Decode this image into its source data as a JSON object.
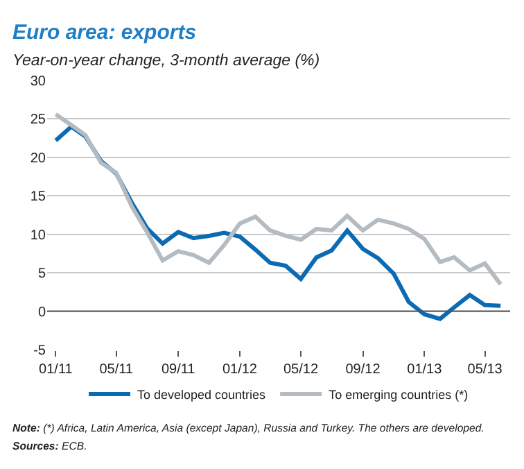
{
  "chart_data": {
    "type": "line",
    "title": "Euro area: exports",
    "subtitle": "Year-on-year change, 3-month average (%)",
    "x": [
      "2011-01",
      "2011-02",
      "2011-03",
      "2011-04",
      "2011-05",
      "2011-06",
      "2011-07",
      "2011-08",
      "2011-09",
      "2011-10",
      "2011-11",
      "2011-12",
      "2012-01",
      "2012-02",
      "2012-03",
      "2012-04",
      "2012-05",
      "2012-06",
      "2012-07",
      "2012-08",
      "2012-09",
      "2012-10",
      "2012-11",
      "2012-12",
      "2013-01",
      "2013-02",
      "2013-03",
      "2013-04",
      "2013-05",
      "2013-06"
    ],
    "series": [
      {
        "name": "To developed countries",
        "color": "#0a6ab4",
        "values": [
          22.2,
          24.0,
          22.7,
          19.5,
          17.9,
          14.1,
          10.8,
          8.8,
          10.3,
          9.5,
          9.8,
          10.2,
          9.7,
          8.0,
          6.3,
          5.9,
          4.2,
          7.0,
          7.9,
          10.5,
          8.1,
          6.9,
          4.9,
          1.2,
          -0.4,
          -1.0,
          0.5,
          2.1,
          0.8,
          0.7
        ]
      },
      {
        "name": "To emerging countries (*)",
        "color": "#b4bcc2",
        "values": [
          25.6,
          24.2,
          22.9,
          19.3,
          18.0,
          13.6,
          10.3,
          6.6,
          7.8,
          7.3,
          6.3,
          8.6,
          11.4,
          12.3,
          10.5,
          9.8,
          9.3,
          10.7,
          10.5,
          12.4,
          10.5,
          11.9,
          11.4,
          10.7,
          9.4,
          6.4,
          7.0,
          5.3,
          6.2,
          3.5
        ]
      }
    ],
    "xlim": [
      "2010-12-15",
      "2013-06-20"
    ],
    "xticks": [
      {
        "value": "2011-01",
        "label": "01/11"
      },
      {
        "value": "2011-05",
        "label": "05/11"
      },
      {
        "value": "2011-09",
        "label": "09/11"
      },
      {
        "value": "2012-01",
        "label": "01/12"
      },
      {
        "value": "2012-05",
        "label": "05/12"
      },
      {
        "value": "2012-09",
        "label": "09/12"
      },
      {
        "value": "2013-01",
        "label": "01/13"
      },
      {
        "value": "2013-05",
        "label": "05/13"
      }
    ],
    "ylim": [
      -5,
      30
    ],
    "yticks": [
      -5,
      0,
      5,
      10,
      15,
      20,
      25,
      30
    ],
    "ref_lines": [
      {
        "axis": "y",
        "value": 0,
        "color": "#555555"
      }
    ],
    "grid": "y",
    "legend": "bottom",
    "marker": "none",
    "line_style": "solid",
    "annotations": [
      "Note: (*) Africa, Latin America, Asia (except Japan), Russia and Turkey. The others are developed.",
      "Sources: ECB."
    ]
  }
}
